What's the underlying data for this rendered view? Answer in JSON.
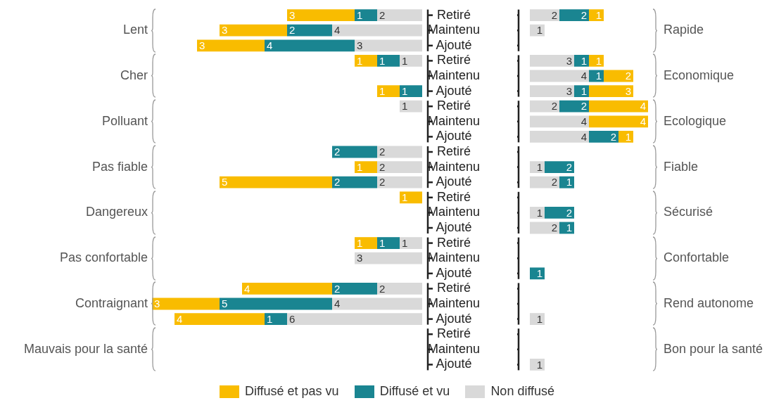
{
  "chart_data": [
    {
      "type": "bar",
      "orientation": "horizontal",
      "stacked": true,
      "data_labels": true,
      "tick_labels": "y",
      "categories": [
        "Retiré",
        "Maintenu",
        "Ajouté",
        "Retiré",
        "Maintenu",
        "Ajouté",
        "Retiré",
        "Maintenu",
        "Ajouté",
        "Retiré",
        "Maintenu",
        "Ajouté",
        "Retiré",
        "Maintenu",
        "Ajouté",
        "Retiré",
        "Maintenu",
        "Ajouté",
        "Retiré",
        "Maintenu",
        "Ajouté",
        "Retiré",
        "Maintenu",
        "Ajouté"
      ],
      "annotations": [
        "Lent",
        "Cher",
        "Polluant",
        "Pas fiable",
        "Dangereux",
        "Pas confortable",
        "Contraignant",
        "Mauvais pour la santé"
      ],
      "series": [
        {
          "color": "#d9d9d9",
          "values": [
            2,
            4,
            3,
            1,
            null,
            null,
            1,
            null,
            null,
            2,
            2,
            2,
            null,
            null,
            null,
            1,
            3,
            null,
            2,
            4,
            6,
            null,
            null,
            null
          ]
        },
        {
          "color": "#1a8591",
          "values": [
            1,
            2,
            4,
            1,
            null,
            1,
            null,
            null,
            null,
            2,
            null,
            2,
            null,
            null,
            null,
            1,
            null,
            null,
            2,
            5,
            1,
            null,
            null,
            null
          ]
        },
        {
          "color": "#f9bc00",
          "values": [
            3,
            3,
            3,
            1,
            null,
            1,
            null,
            null,
            null,
            null,
            1,
            5,
            1,
            null,
            null,
            1,
            null,
            null,
            4,
            3,
            4,
            null,
            null,
            null
          ]
        }
      ]
    },
    {
      "type": "bar",
      "orientation": "horizontal",
      "stacked": true,
      "data_labels": true,
      "tick_labels": "y",
      "legend": "bottom",
      "categories": [
        null,
        null,
        null,
        null,
        null,
        null,
        null,
        null,
        null,
        null,
        null,
        null,
        null,
        null,
        null,
        null,
        null,
        null,
        null,
        null,
        null,
        null,
        null,
        null
      ],
      "annotations": [
        "Rapide",
        "Economique",
        "Ecologique",
        "Fiable",
        "Sécurisé",
        "Confortable",
        "Rend autonome",
        "Bon pour la santé"
      ],
      "series": [
        {
          "name": "Non diffusé",
          "color": "#d9d9d9",
          "values": [
            2,
            1,
            null,
            3,
            4,
            3,
            2,
            4,
            4,
            null,
            1,
            2,
            null,
            1,
            2,
            null,
            null,
            null,
            null,
            null,
            1,
            null,
            null,
            1
          ]
        },
        {
          "name": "Diffusé et vu",
          "color": "#1a8591",
          "values": [
            2,
            null,
            null,
            1,
            1,
            1,
            2,
            null,
            2,
            null,
            2,
            1,
            null,
            2,
            1,
            null,
            null,
            1,
            null,
            null,
            null,
            null,
            null,
            null
          ]
        },
        {
          "name": "Diffusé et pas vu",
          "color": "#f9bc00",
          "values": [
            1,
            null,
            null,
            1,
            2,
            3,
            4,
            4,
            1,
            null,
            null,
            null,
            null,
            null,
            null,
            null,
            null,
            null,
            null,
            null,
            null,
            null,
            null,
            null
          ]
        }
      ]
    }
  ]
}
